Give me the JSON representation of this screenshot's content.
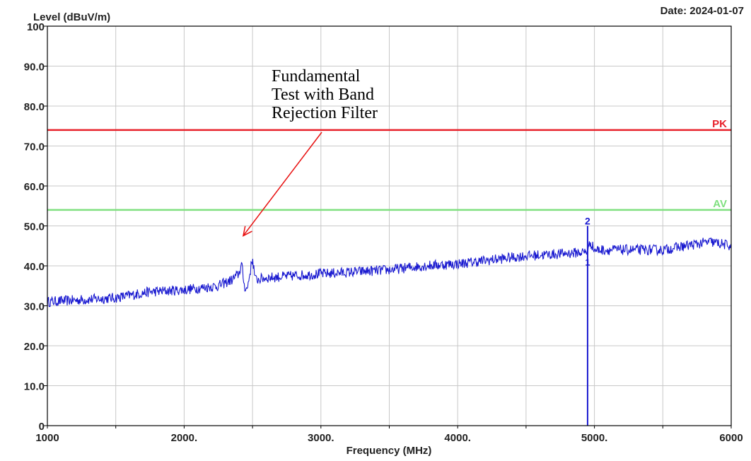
{
  "chart_data": {
    "type": "line",
    "title": "",
    "ylabel": "Level (dBuV/m)",
    "xlabel": "Frequency (MHz)",
    "date_label": "Date: 2024-01-07",
    "xlim": [
      1000,
      6000
    ],
    "ylim": [
      0,
      100
    ],
    "x_ticks": [
      1000,
      1500,
      2000,
      2500,
      3000,
      3500,
      4000,
      4500,
      5000,
      5500,
      6000
    ],
    "x_tick_labels": [
      {
        "value": 1000,
        "text": "1000"
      },
      {
        "value": 2000,
        "text": "2000."
      },
      {
        "value": 3000,
        "text": "3000."
      },
      {
        "value": 4000,
        "text": "4000."
      },
      {
        "value": 5000,
        "text": "5000."
      },
      {
        "value": 6000,
        "text": "6000"
      }
    ],
    "y_tick_labels": [
      {
        "value": 0,
        "text": "0"
      },
      {
        "value": 10,
        "text": "10.0"
      },
      {
        "value": 20,
        "text": "20.0"
      },
      {
        "value": 30,
        "text": "30.0"
      },
      {
        "value": 40,
        "text": "40.0"
      },
      {
        "value": 50,
        "text": "50.0"
      },
      {
        "value": 60,
        "text": "60.0"
      },
      {
        "value": 70,
        "text": "70.0"
      },
      {
        "value": 80,
        "text": "80.0"
      },
      {
        "value": 90,
        "text": "90.0"
      },
      {
        "value": 100,
        "text": "100"
      }
    ],
    "grid": true,
    "limit_lines": [
      {
        "name": "PK",
        "value": 74,
        "color": "#e8202a"
      },
      {
        "name": "AV",
        "value": 54,
        "color": "#7fe07f"
      }
    ],
    "series": [
      {
        "color": "#1a1ad0",
        "points": [
          [
            1000,
            31
          ],
          [
            1250,
            31.5
          ],
          [
            1500,
            32
          ],
          [
            1750,
            33.5
          ],
          [
            2000,
            34
          ],
          [
            2250,
            35
          ],
          [
            2350,
            36.5
          ],
          [
            2400,
            38
          ],
          [
            2420,
            40.5
          ],
          [
            2440,
            35
          ],
          [
            2460,
            34
          ],
          [
            2480,
            38
          ],
          [
            2500,
            42
          ],
          [
            2520,
            36.5
          ],
          [
            2600,
            37
          ],
          [
            2800,
            37.5
          ],
          [
            3000,
            38
          ],
          [
            3250,
            38.5
          ],
          [
            3500,
            39
          ],
          [
            3750,
            40
          ],
          [
            4000,
            40.5
          ],
          [
            4250,
            41.5
          ],
          [
            4500,
            42.5
          ],
          [
            4750,
            43
          ],
          [
            4950,
            43.5
          ],
          [
            4970,
            46
          ],
          [
            5000,
            44
          ],
          [
            5250,
            44
          ],
          [
            5500,
            44
          ],
          [
            5750,
            45.5
          ],
          [
            5850,
            46
          ],
          [
            6000,
            45
          ]
        ]
      }
    ],
    "markers": [
      {
        "label": "1",
        "x": 4950,
        "y": 41
      },
      {
        "label": "2",
        "x": 4950,
        "y": 50
      }
    ],
    "annotation": {
      "lines": [
        "Fundamental",
        "Test with Band",
        "Rejection Filter"
      ],
      "arrow_to": {
        "x": 2520,
        "y": 47
      }
    }
  }
}
